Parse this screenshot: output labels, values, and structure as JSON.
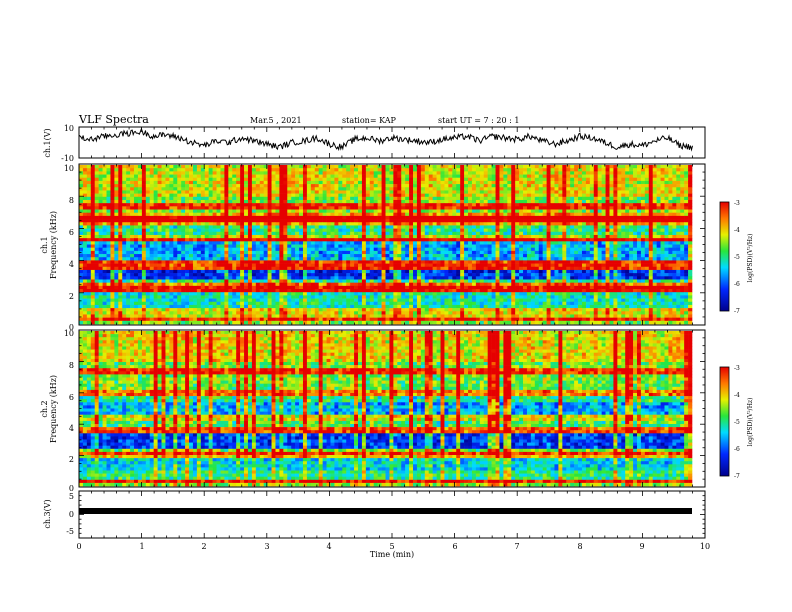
{
  "header": {
    "title": "VLF Spectra",
    "date": "Mar.5 , 2021",
    "station": "station= KAP",
    "start_ut": "start UT = 7 : 20 : 1"
  },
  "chart_data": [
    {
      "type": "line",
      "panel": "ch1-waveform",
      "ylabel": "ch.1(V)",
      "ylim": [
        -10,
        10
      ],
      "yticks": [
        "10",
        "-10"
      ],
      "xlim": [
        0,
        10
      ],
      "x": [
        0.0,
        0.2,
        0.4,
        0.6,
        0.8,
        1.0,
        1.2,
        1.4,
        1.6,
        1.8,
        2.0,
        2.2,
        2.4,
        2.6,
        2.8,
        3.0,
        3.2,
        3.4,
        3.6,
        3.8,
        4.0,
        4.2,
        4.4,
        4.6,
        4.8,
        5.0,
        5.2,
        5.4,
        5.6,
        5.8,
        6.0,
        6.2,
        6.4,
        6.6,
        6.8,
        7.0,
        7.2,
        7.4,
        7.6,
        7.8,
        8.0,
        8.2,
        8.4,
        8.6,
        8.8,
        9.0,
        9.2,
        9.4,
        9.6,
        9.8
      ],
      "values": [
        3,
        2,
        4,
        5,
        6,
        7,
        4,
        5,
        3,
        0,
        -2,
        1,
        0,
        3,
        1,
        -1,
        -3,
        0,
        1,
        3,
        -1,
        -3,
        2,
        3,
        1,
        3,
        2,
        1,
        0,
        2,
        3,
        4,
        1,
        4,
        3,
        2,
        4,
        1,
        -1,
        1,
        4,
        3,
        0,
        -3,
        -1,
        -2,
        1,
        3,
        -2,
        -3
      ]
    },
    {
      "type": "heatmap",
      "panel": "ch1-spectrogram",
      "ylabel": "ch.1",
      "ylabel2": "Frequency (kHz)",
      "ylim": [
        0,
        10
      ],
      "yticks": [
        "0",
        "2",
        "4",
        "6",
        "8",
        "10"
      ],
      "xlim": [
        0,
        10
      ],
      "colorbar": {
        "label": "log(PSD)(V²/Hz)",
        "range": [
          -7,
          -3
        ],
        "ticks": [
          "-3",
          "-4",
          "-5",
          "-6",
          "-7"
        ]
      },
      "band_levels": [
        {
          "fmin": 0.0,
          "fmax": 0.4,
          "level": -4.6
        },
        {
          "fmin": 0.4,
          "fmax": 1.0,
          "level": -4.2
        },
        {
          "fmin": 1.0,
          "fmax": 2.0,
          "level": -5.2
        },
        {
          "fmin": 2.0,
          "fmax": 2.5,
          "level": -4.3
        },
        {
          "fmin": 2.5,
          "fmax": 2.8,
          "level": -5.0
        },
        {
          "fmin": 2.8,
          "fmax": 3.5,
          "level": -6.3
        },
        {
          "fmin": 3.5,
          "fmax": 4.0,
          "level": -4.6
        },
        {
          "fmin": 4.0,
          "fmax": 5.2,
          "level": -5.6
        },
        {
          "fmin": 5.2,
          "fmax": 5.6,
          "level": -4.3
        },
        {
          "fmin": 5.6,
          "fmax": 6.3,
          "level": -5.0
        },
        {
          "fmin": 6.3,
          "fmax": 7.0,
          "level": -3.9
        },
        {
          "fmin": 7.0,
          "fmax": 8.0,
          "level": -4.6
        },
        {
          "fmin": 8.0,
          "fmax": 10.0,
          "level": -4.2
        }
      ],
      "lines_khz": [
        0.3,
        2.2,
        2.4,
        3.6,
        3.8,
        5.3,
        6.6,
        7.4
      ]
    },
    {
      "type": "heatmap",
      "panel": "ch2-spectrogram",
      "ylabel": "ch.2",
      "ylabel2": "Frequency (kHz)",
      "ylim": [
        0,
        10
      ],
      "yticks": [
        "0",
        "2",
        "4",
        "6",
        "8",
        "10"
      ],
      "xlim": [
        0,
        10
      ],
      "colorbar": {
        "label": "log(PSD)(V²/Hz)",
        "range": [
          -7,
          -3
        ],
        "ticks": [
          "-3",
          "-4",
          "-5",
          "-6",
          "-7"
        ]
      },
      "band_levels": [
        {
          "fmin": 0.0,
          "fmax": 0.4,
          "level": -4.5
        },
        {
          "fmin": 0.4,
          "fmax": 1.0,
          "level": -5.0
        },
        {
          "fmin": 1.0,
          "fmax": 2.0,
          "level": -5.4
        },
        {
          "fmin": 2.0,
          "fmax": 2.5,
          "level": -4.6
        },
        {
          "fmin": 2.5,
          "fmax": 3.5,
          "level": -6.2
        },
        {
          "fmin": 3.5,
          "fmax": 4.2,
          "level": -4.8
        },
        {
          "fmin": 4.2,
          "fmax": 5.5,
          "level": -5.6
        },
        {
          "fmin": 5.5,
          "fmax": 6.3,
          "level": -5.0
        },
        {
          "fmin": 6.3,
          "fmax": 8.0,
          "level": -4.6
        },
        {
          "fmin": 8.0,
          "fmax": 10.0,
          "level": -4.1
        }
      ],
      "lines_khz": [
        0.3,
        2.0,
        3.6,
        4.4,
        6.0,
        7.4
      ]
    },
    {
      "type": "line",
      "panel": "ch3-waveform",
      "ylabel": "ch.3(V)",
      "ylim": [
        -5,
        5
      ],
      "yticks": [
        "5",
        "0",
        "-5"
      ],
      "xlim": [
        0,
        10
      ],
      "x": [
        0,
        9.8
      ],
      "values": [
        -2.1,
        -2.1
      ],
      "xlabel": "Time (min)",
      "xticks": [
        "0",
        "1",
        "2",
        "3",
        "4",
        "5",
        "6",
        "7",
        "8",
        "9",
        "10"
      ]
    }
  ]
}
